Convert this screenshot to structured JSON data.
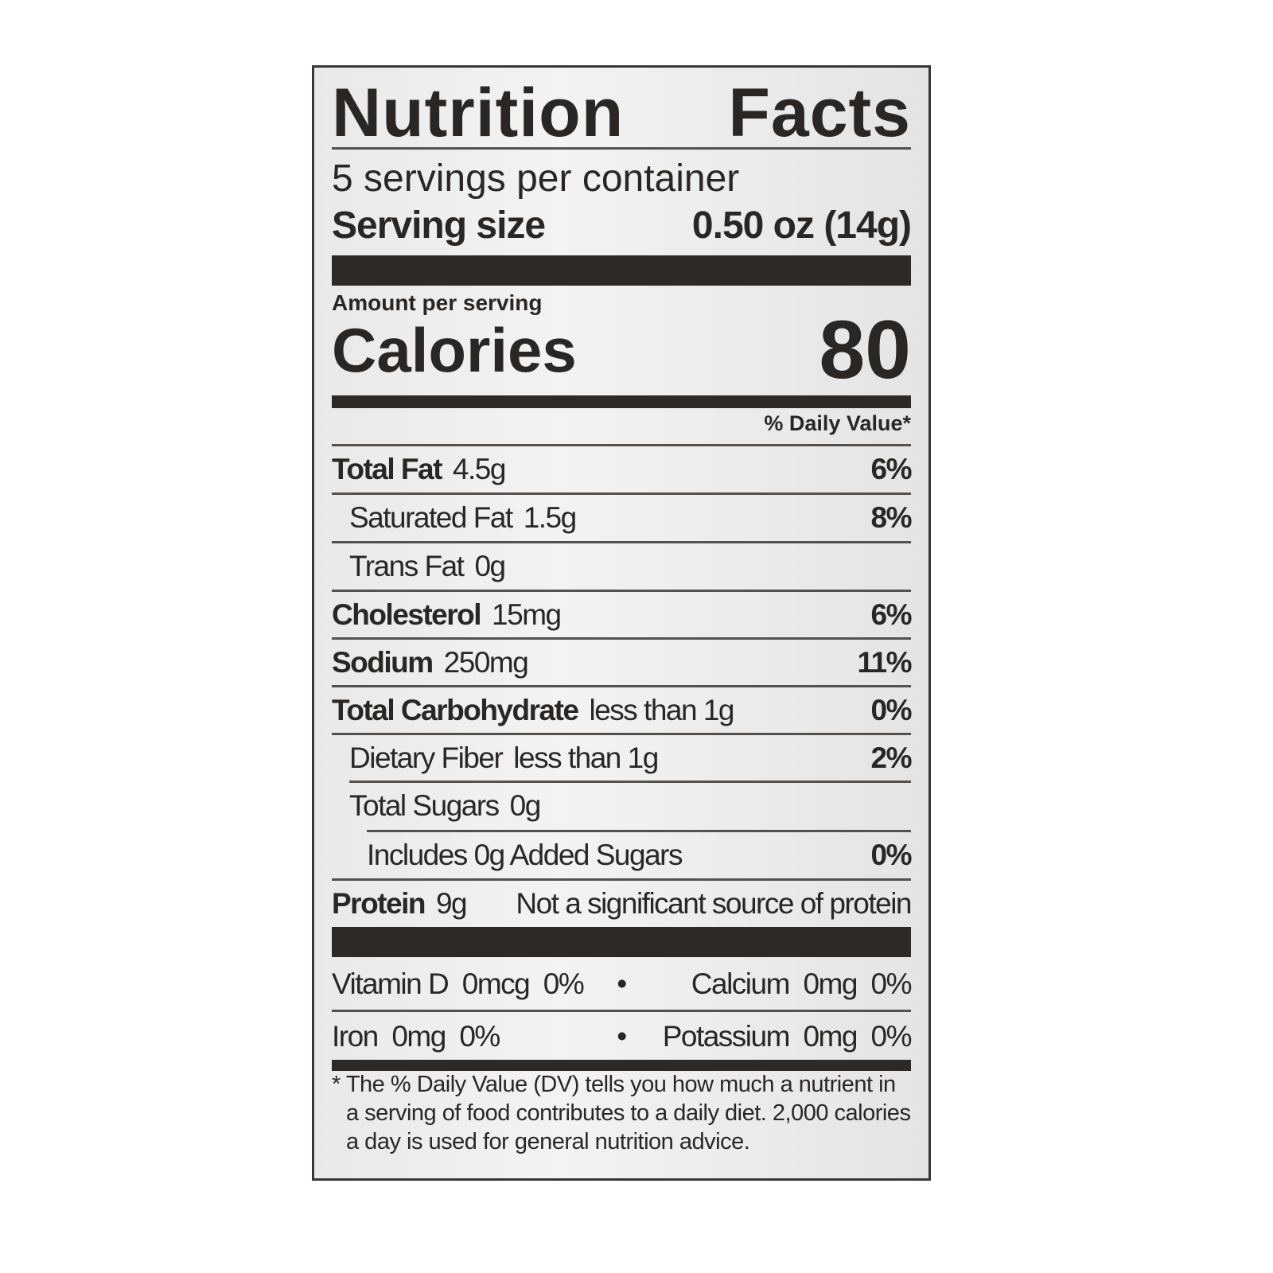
{
  "title_words": [
    "Nutrition",
    "Facts"
  ],
  "servings_per_container": "5 servings per container",
  "serving_size_label": "Serving size",
  "serving_size_value": "0.50 oz (14g)",
  "amount_per_serving": "Amount per serving",
  "calories_label": "Calories",
  "calories_value": "80",
  "daily_value_header": "% Daily Value*",
  "nutrients": [
    {
      "name": "Total Fat",
      "amount": "4.5g",
      "dv": "6%"
    },
    {
      "name": "Saturated Fat",
      "amount": "1.5g",
      "dv": "8%"
    },
    {
      "name": "Trans Fat",
      "amount": "0g",
      "dv": ""
    },
    {
      "name": "Cholesterol",
      "amount": "15mg",
      "dv": "6%"
    },
    {
      "name": "Sodium",
      "amount": "250mg",
      "dv": "11%"
    },
    {
      "name": "Total Carbohydrate",
      "amount": "less than 1g",
      "dv": "0%"
    },
    {
      "name": "Dietary Fiber",
      "amount": "less than 1g",
      "dv": "2%"
    },
    {
      "name": "Total Sugars",
      "amount": "0g",
      "dv": ""
    },
    {
      "name": "Includes 0g Added Sugars",
      "amount": "",
      "dv": "0%"
    },
    {
      "name": "Protein",
      "amount": "9g",
      "dv": "Not a significant source of protein"
    }
  ],
  "vitamins": [
    {
      "left": "Vitamin D  0mcg  0%",
      "right": "Calcium  0mg  0%"
    },
    {
      "left": "Iron  0mg  0%",
      "right": "Potassium  0mg  0%"
    }
  ],
  "bullet": "•",
  "footnote": "* The % Daily Value (DV) tells you how much a nutrient in a serving of food contributes to a daily diet. 2,000 calories a day is used for general nutrition advice."
}
